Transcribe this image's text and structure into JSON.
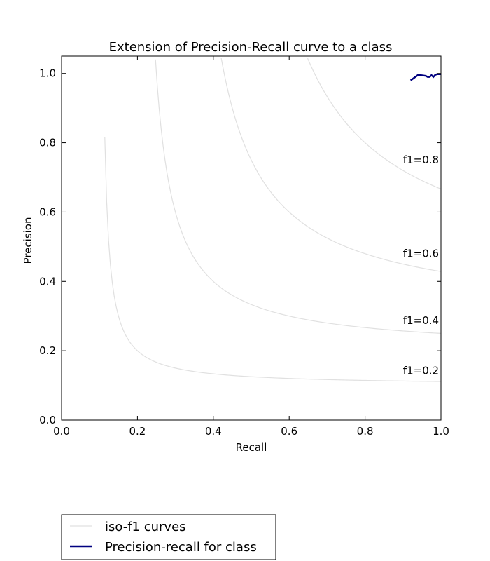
{
  "chart_data": {
    "type": "line",
    "title": "Extension of Precision-Recall curve to a class",
    "xlabel": "Recall",
    "ylabel": "Precision",
    "xlim": [
      0.0,
      1.0
    ],
    "ylim": [
      0.0,
      1.05
    ],
    "xticks": [
      "0.0",
      "0.2",
      "0.4",
      "0.6",
      "0.8",
      "1.0"
    ],
    "yticks": [
      "0.0",
      "0.2",
      "0.4",
      "0.6",
      "0.8",
      "1.0"
    ],
    "grid": false,
    "legend_position": "below-left",
    "iso_f1": {
      "legend_label": "iso-f1 curves",
      "color": "#e0e0e0",
      "levels": [
        0.2,
        0.4,
        0.6,
        0.8
      ],
      "labels": [
        "f1=0.2",
        "f1=0.4",
        "f1=0.6",
        "f1=0.8"
      ]
    },
    "series": [
      {
        "name": "Precision-recall for class",
        "color": "#000080",
        "recall": [
          1.0,
          1.0,
          0.99,
          0.985,
          0.98,
          0.975,
          0.97,
          0.965,
          0.96,
          0.94,
          0.92
        ],
        "precision": [
          1.0,
          0.998,
          0.998,
          0.996,
          0.99,
          0.995,
          0.99,
          0.99,
          0.993,
          0.996,
          0.98
        ]
      }
    ]
  }
}
